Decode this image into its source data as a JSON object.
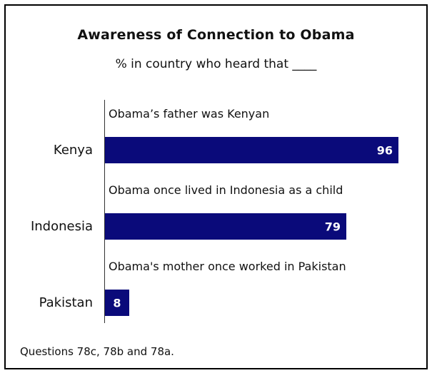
{
  "chart_data": {
    "type": "bar",
    "orientation": "horizontal",
    "title": "Awareness of Connection to Obama",
    "subtitle": "% in country who heard that ____",
    "categories": [
      "Kenya",
      "Indonesia",
      "Pakistan"
    ],
    "notes": [
      "Obama’s father was Kenyan",
      "Obama once lived in Indonesia as a child",
      "Obama's mother once worked in Pakistan"
    ],
    "values": [
      96,
      79,
      8
    ],
    "xlim": [
      0,
      100
    ],
    "grid": false,
    "legend": "none",
    "bar_color": "#0a0a7a",
    "footnote": "Questions 78c, 78b and 78a."
  }
}
